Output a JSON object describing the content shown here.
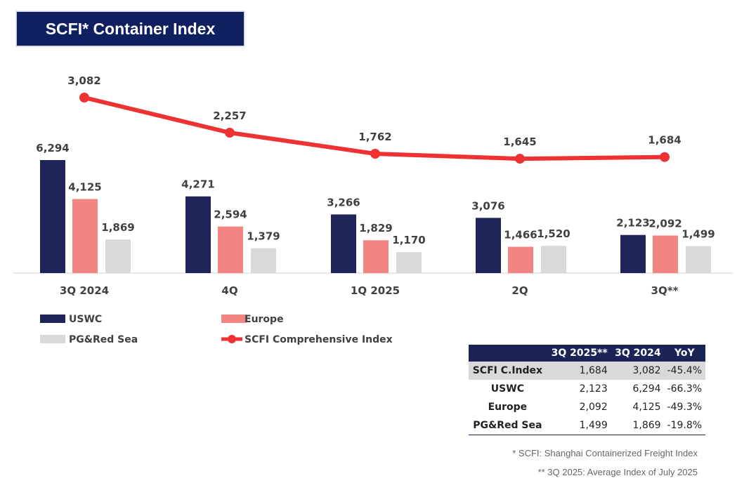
{
  "title": "SCFI* Container Index",
  "chart_data": {
    "type": "bar",
    "title": "SCFI* Container Index",
    "categories": [
      "3Q 2024",
      "4Q",
      "1Q 2025",
      "2Q",
      "3Q**"
    ],
    "series": [
      {
        "name": "USWC",
        "kind": "bar",
        "color": "#1f2559",
        "values": [
          6294,
          4271,
          3266,
          3076,
          2123
        ],
        "labels": [
          "6,294",
          "4,271",
          "3,266",
          "3,076",
          "2,123"
        ]
      },
      {
        "name": "Europe",
        "kind": "bar",
        "color": "#f28482",
        "values": [
          4125,
          2594,
          1829,
          1466,
          2092
        ],
        "labels": [
          "4,125",
          "2,594",
          "1,829",
          "1,466",
          "2,092"
        ]
      },
      {
        "name": "PG&Red Sea",
        "kind": "bar",
        "color": "#d9d9d9",
        "values": [
          1869,
          1379,
          1170,
          1520,
          1499
        ],
        "labels": [
          "1,869",
          "1,379",
          "1,170",
          "1,520",
          "1,499"
        ]
      },
      {
        "name": "SCFI Comprehensive Index",
        "kind": "line",
        "color": "#ee3131",
        "values": [
          3082,
          2257,
          1762,
          1645,
          1684
        ],
        "labels": [
          "3,082",
          "2,257",
          "1,762",
          "1,645",
          "1,684"
        ]
      }
    ],
    "xlabel": "",
    "ylabel": "",
    "grid": false,
    "legend": "bottom-left"
  },
  "table": {
    "headers": [
      "",
      "3Q 2025**",
      "3Q 2024",
      "YoY"
    ],
    "rows": [
      [
        "SCFI C.Index",
        "1,684",
        "3,082",
        "-45.4%"
      ],
      [
        "USWC",
        "2,123",
        "6,294",
        "-66.3%"
      ],
      [
        "Europe",
        "2,092",
        "4,125",
        "-49.3%"
      ],
      [
        "PG&Red Sea",
        "1,499",
        "1,869",
        "-19.8%"
      ]
    ]
  },
  "notes": [
    "* SCFI: Shanghai Containerized Freight Index",
    "** 3Q 2025: Average Index of July 2025"
  ]
}
